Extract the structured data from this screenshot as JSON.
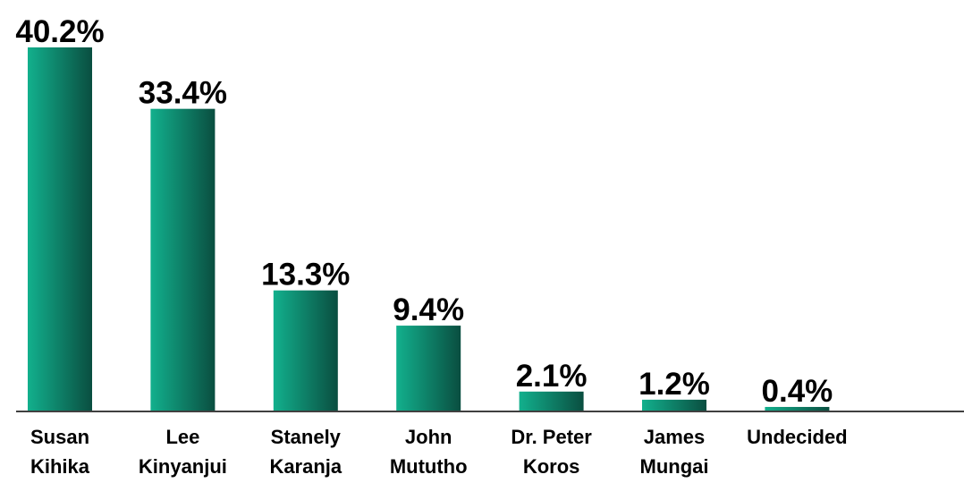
{
  "chart_data": {
    "type": "bar",
    "categories": [
      [
        "Susan",
        "Kihika"
      ],
      [
        "Lee",
        "Kinyanjui"
      ],
      [
        "Stanely",
        "Karanja"
      ],
      [
        "John",
        "Mututho"
      ],
      [
        "Dr. Peter",
        "Koros"
      ],
      [
        "James",
        "Mungai"
      ],
      [
        "Undecided"
      ]
    ],
    "values": [
      40.2,
      33.4,
      13.3,
      9.4,
      2.1,
      1.2,
      0.4
    ],
    "value_labels": [
      "40.2%",
      "33.4%",
      "13.3%",
      "9.4%",
      "2.1%",
      "1.2%",
      "0.4%"
    ],
    "colors": [
      "#12b08d",
      "#0a4e40"
    ]
  }
}
